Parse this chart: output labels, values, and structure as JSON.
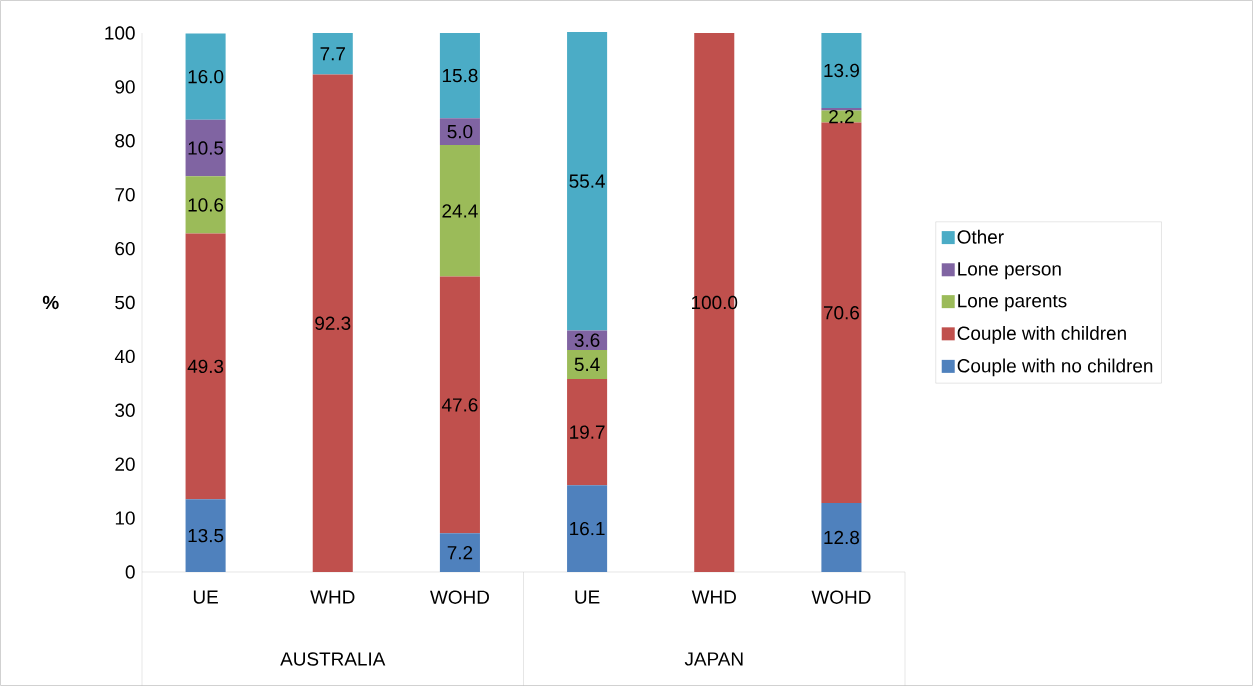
{
  "chart_data": {
    "type": "bar",
    "stacked": true,
    "ylabel": "**%**",
    "categories": [
      "UE",
      "WHD",
      "WOHD",
      "UE",
      "WHD",
      "WOHD"
    ],
    "series": [
      {
        "name": "Couple with no children",
        "color": "#4f81bd",
        "values": [
          13.5,
          0,
          7.2,
          16.1,
          0,
          12.8
        ],
        "value_labels": [
          "13.5",
          null,
          "7.2",
          "16.1",
          null,
          "12.8"
        ]
      },
      {
        "name": "Couple with children",
        "color": "#c0504d",
        "values": [
          49.3,
          92.3,
          47.6,
          19.7,
          100.0,
          70.6
        ],
        "value_labels": [
          "49.3",
          "92.3",
          "47.6",
          "19.7",
          "100.0",
          "70.6"
        ]
      },
      {
        "name": "Lone parents",
        "color": "#9bbb59",
        "values": [
          10.6,
          0,
          24.4,
          5.4,
          0,
          2.2
        ],
        "value_labels": [
          "10.6",
          null,
          "24.4",
          "5.4",
          null,
          "2.2"
        ]
      },
      {
        "name": "Lone person",
        "color": "#8064a2",
        "values": [
          10.5,
          0,
          5.0,
          3.6,
          0,
          0.5
        ],
        "value_labels": [
          "10.5",
          null,
          "5.0",
          "3.6",
          null,
          null
        ]
      },
      {
        "name": "Other",
        "color": "#4bacc6",
        "values": [
          16.0,
          7.7,
          15.8,
          55.4,
          0,
          13.9
        ],
        "value_labels": [
          "16.0",
          "7.7",
          "15.8",
          "55.4",
          null,
          "13.9"
        ]
      }
    ],
    "ylim": [
      0,
      100
    ],
    "yticks": [
      0,
      10,
      20,
      30,
      40,
      50,
      60,
      70,
      80,
      90,
      100
    ],
    "legend": "right",
    "annotations": [
      "AUSTRALIA",
      "JAPAN"
    ]
  }
}
